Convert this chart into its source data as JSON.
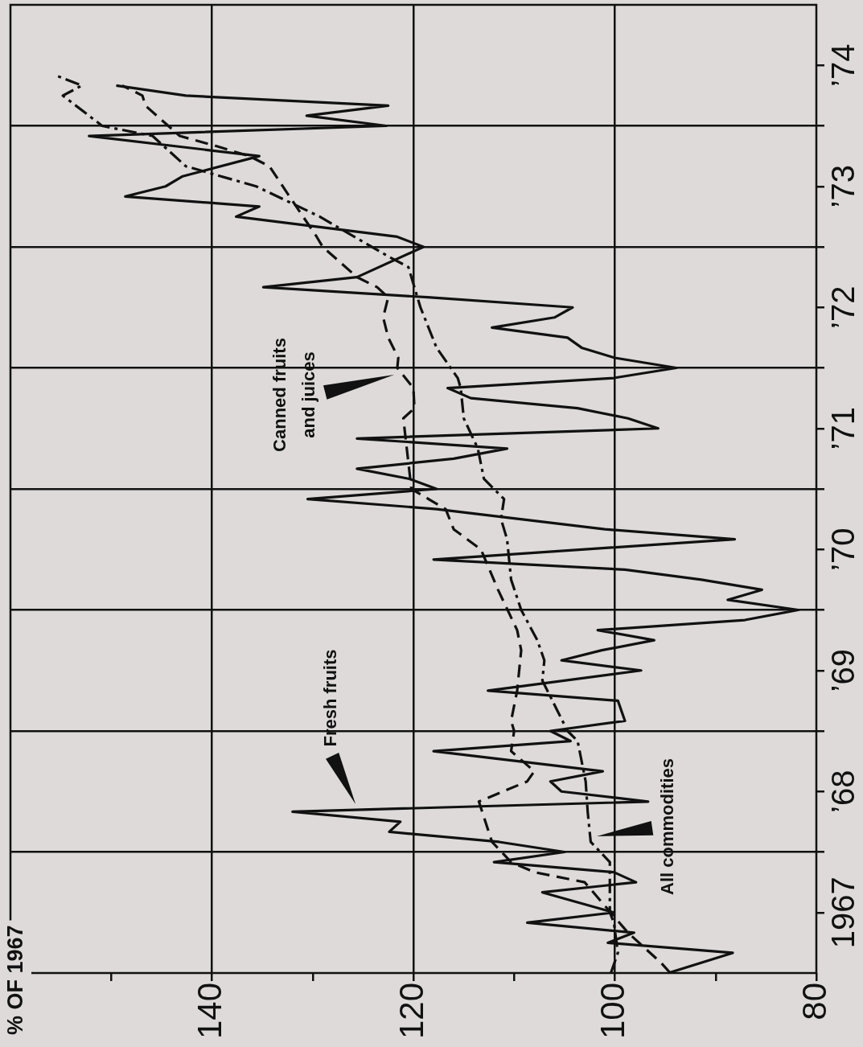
{
  "chart_data": {
    "type": "line",
    "orientation": "horizontal",
    "ylabel": "% OF 1967",
    "xlim": [
      160,
      80
    ],
    "xticks": [
      {
        "value": 150,
        "label": null
      },
      140,
      {
        "value": 130,
        "label": null
      },
      120,
      {
        "value": 110,
        "label": null
      },
      100,
      {
        "value": 90,
        "label": null
      },
      80
    ],
    "ylim": [
      "1967-01",
      "1975-01"
    ],
    "yticks": [
      {
        "value": "1967-07",
        "label": "1967"
      },
      {
        "value": "1968-01",
        "label": null
      },
      {
        "value": "1968-07",
        "label": "’68"
      },
      {
        "value": "1969-01",
        "label": null
      },
      {
        "value": "1969-07",
        "label": "’69"
      },
      {
        "value": "1970-01",
        "label": null
      },
      {
        "value": "1970-07",
        "label": "’70"
      },
      {
        "value": "1971-01",
        "label": null
      },
      {
        "value": "1971-07",
        "label": "’71"
      },
      {
        "value": "1972-01",
        "label": null
      },
      {
        "value": "1972-07",
        "label": "’72"
      },
      {
        "value": "1973-01",
        "label": null
      },
      {
        "value": "1973-07",
        "label": "’73"
      },
      {
        "value": "1974-01",
        "label": null
      },
      {
        "value": "1974-07",
        "label": "’74"
      }
    ],
    "grid": true,
    "series": [
      {
        "color": "#111111",
        "line_style": "solid",
        "x": [
          "1967-01",
          "1967-03",
          "1967-04",
          "1967-05",
          "1967-06",
          "1967-07",
          "1967-09",
          "1967-10",
          "1967-11",
          "1967-12",
          "1968-01",
          "1968-02",
          "1968-03",
          "1968-04",
          "1968-05",
          "1968-06",
          "1968-07",
          "1968-08",
          "1968-09",
          "1968-11",
          "1968-12",
          "1969-01",
          "1969-02",
          "1969-04",
          "1969-05",
          "1969-07",
          "1969-08",
          "1969-09",
          "1969-10",
          "1969-11",
          "1969-12",
          "1970-01",
          "1970-02",
          "1970-03",
          "1970-04",
          "1970-05",
          "1970-06",
          "1970-08",
          "1970-09",
          "1970-11",
          "1970-12",
          "1971-01",
          "1971-02",
          "1971-03",
          "1971-04",
          "1971-05",
          "1971-06",
          "1971-07",
          "1971-08",
          "1971-09",
          "1971-10",
          "1971-11",
          "1971-12",
          "1972-01",
          "1972-02",
          "1972-03",
          "1972-04",
          "1972-05",
          "1972-06",
          "1972-07",
          "1972-08",
          "1972-09",
          "1972-10",
          "1973-01",
          "1973-02",
          "1973-04",
          "1973-05",
          "1973-06",
          "1973-07",
          "1973-08",
          "1973-10",
          "1973-12",
          "1974-01",
          "1974-02",
          "1974-03",
          "1974-04",
          "1974-05"
        ],
        "values": [
          94.7,
          88.3,
          100.7,
          98.1,
          108.7,
          100.1,
          107.2,
          97.9,
          100.1,
          112,
          105,
          111.5,
          122.4,
          121.3,
          132,
          96.7,
          105.3,
          106.4,
          101.2,
          118,
          104.4,
          106.4,
          99,
          99.7,
          112.6,
          97.4,
          105.3,
          101.3,
          96.1,
          101.7,
          87.1,
          81.8,
          88.8,
          85.4,
          91.4,
          99,
          118,
          88.1,
          101,
          117.7,
          130.5,
          117.7,
          120.4,
          125.6,
          116,
          110.7,
          125.6,
          95.7,
          98.7,
          103.7,
          114.3,
          116.6,
          100.1,
          93.9,
          100,
          103.3,
          104.7,
          112.2,
          106,
          104.2,
          118.6,
          134.9,
          125.6,
          119,
          121.6,
          137.6,
          135.3,
          148.6,
          144.6,
          142.9,
          135.3,
          152.2,
          122.7,
          130.6,
          122.5,
          142.6,
          149.5
        ]
      },
      {
        "color": "#111111",
        "line_style": "dashed",
        "x": [
          "1967-01",
          "1967-02",
          "1967-05",
          "1967-10",
          "1967-11",
          "1967-12",
          "1968-02",
          "1968-06",
          "1968-08",
          "1968-09",
          "1968-11",
          "1969-01",
          "1969-02",
          "1969-05",
          "1969-09",
          "1969-11",
          "1970-03",
          "1970-07",
          "1970-09",
          "1970-11",
          "1970-12",
          "1971-01",
          "1971-08",
          "1971-09",
          "1971-11",
          "1972-01",
          "1972-02",
          "1972-04",
          "1972-06",
          "1972-08",
          "1972-09",
          "1972-10",
          "1973-01",
          "1973-02",
          "1973-06",
          "1973-09",
          "1973-10",
          "1973-11",
          "1973-12",
          "1974-03",
          "1974-04",
          "1974-05"
        ],
        "values": [
          94.5,
          95.4,
          98.7,
          103,
          108,
          110.3,
          112.2,
          113.5,
          108.7,
          108,
          110.3,
          110,
          110.3,
          109.7,
          109.3,
          109.7,
          111.6,
          113.3,
          116,
          116.8,
          118.5,
          120.2,
          121,
          119.9,
          120,
          121.6,
          121.5,
          122.5,
          123,
          122.5,
          123.6,
          125.6,
          129,
          129.6,
          132.3,
          134.3,
          136.3,
          139.6,
          143.2,
          146.6,
          146.9,
          148.9
        ]
      },
      {
        "color": "#111111",
        "line_style": "dashdot",
        "x": [
          "1967-01",
          "1967-03",
          "1967-06",
          "1967-07",
          "1967-12",
          "1968-02",
          "1968-05",
          "1968-08",
          "1968-12",
          "1969-01",
          "1969-03",
          "1969-06",
          "1969-08",
          "1969-10",
          "1970-01",
          "1970-04",
          "1970-08",
          "1970-10",
          "1970-12",
          "1971-02",
          "1971-05",
          "1971-08",
          "1971-11",
          "1971-12",
          "1972-03",
          "1972-07",
          "1972-11",
          "1972-12",
          "1973-04",
          "1973-07",
          "1973-09",
          "1973-12",
          "1974-01",
          "1974-04",
          "1974-05",
          "1974-06"
        ],
        "values": [
          100.4,
          99.7,
          100.1,
          100.5,
          100.5,
          102.4,
          102.7,
          102.9,
          103.7,
          104.7,
          105.7,
          107.2,
          107,
          107.7,
          109.3,
          110.3,
          110.7,
          111.3,
          111,
          113,
          113.6,
          115,
          115.3,
          115.6,
          117.7,
          119.3,
          120.5,
          122.4,
          129.3,
          135.6,
          142.6,
          145.9,
          150.9,
          154.8,
          152.9,
          155.5
        ]
      }
    ],
    "annotations": [
      "Fresh fruits",
      "Canned fruits\nand juices",
      "All commodities"
    ]
  }
}
